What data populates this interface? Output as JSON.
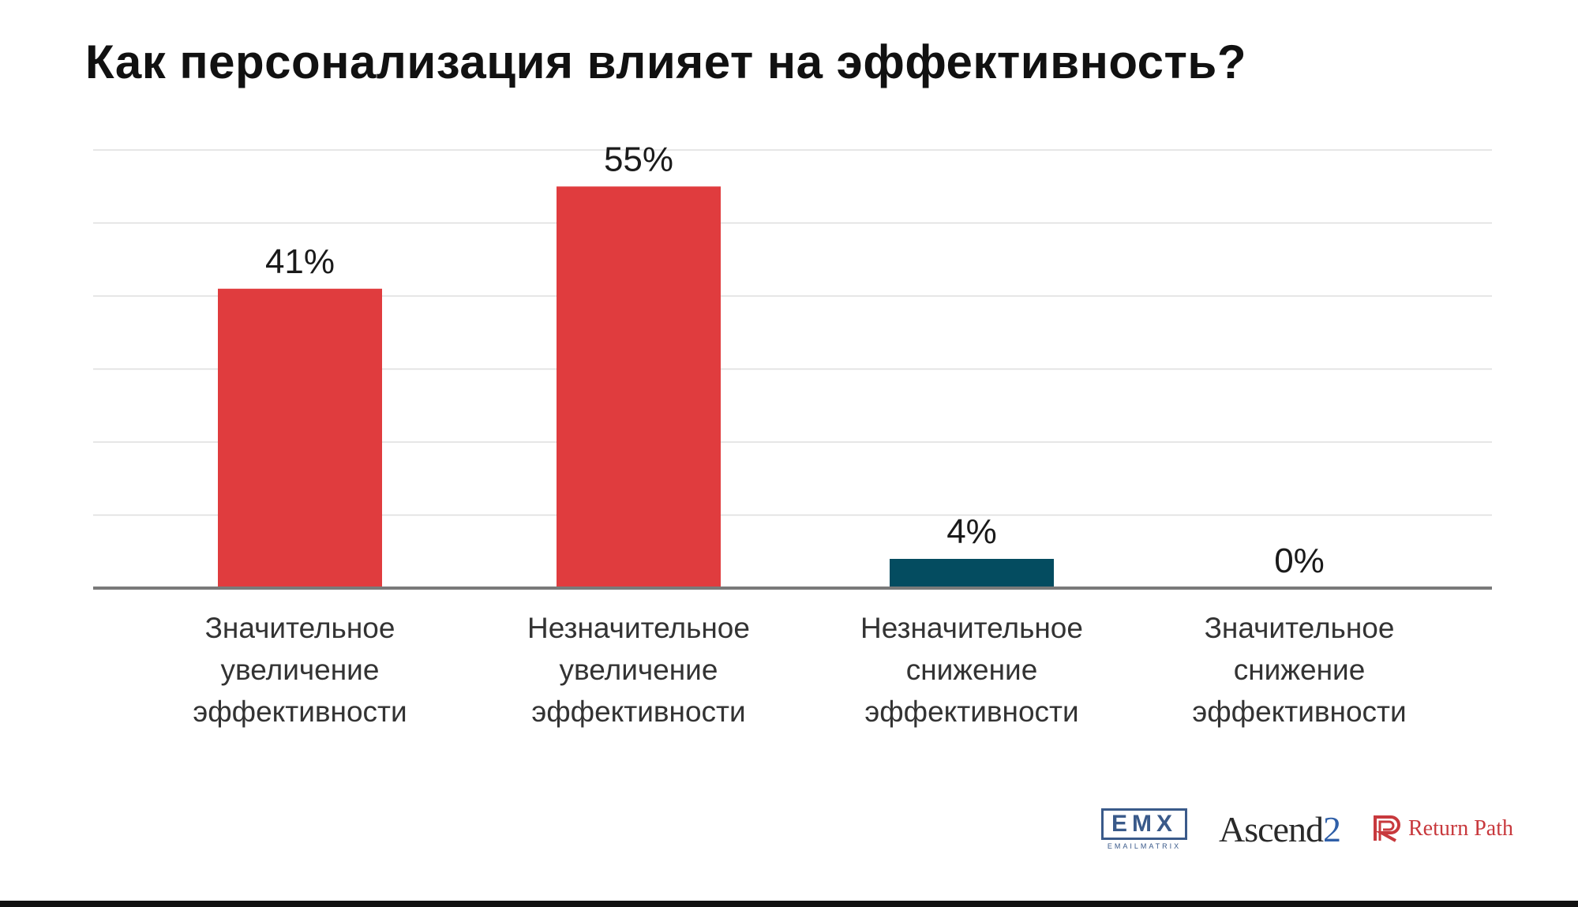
{
  "title": "Как персонализация влияет на эффективность?",
  "chart_data": {
    "type": "bar",
    "title": "Как персонализация влияет на эффективность?",
    "categories": [
      [
        "Значительное",
        "увеличение",
        "эффективности"
      ],
      [
        "Незначительное",
        "увеличение",
        "эффективности"
      ],
      [
        "Незначительное",
        "снижение",
        "эффективности"
      ],
      [
        "Значительное",
        "снижение",
        "эффективности"
      ]
    ],
    "values": [
      41,
      55,
      4,
      0
    ],
    "value_labels": [
      "41%",
      "55%",
      "4%",
      "0%"
    ],
    "colors": [
      "#e03c3e",
      "#e03c3e",
      "#044c60",
      "#e03c3e"
    ],
    "ylim": [
      0,
      60
    ],
    "grid": true,
    "xlabel": "",
    "ylabel": ""
  },
  "logos": {
    "emx": "EMX",
    "emx_sub": "EMAILMATRIX",
    "ascend": "Ascend",
    "ascend_num": "2",
    "returnpath": "Return Path"
  }
}
